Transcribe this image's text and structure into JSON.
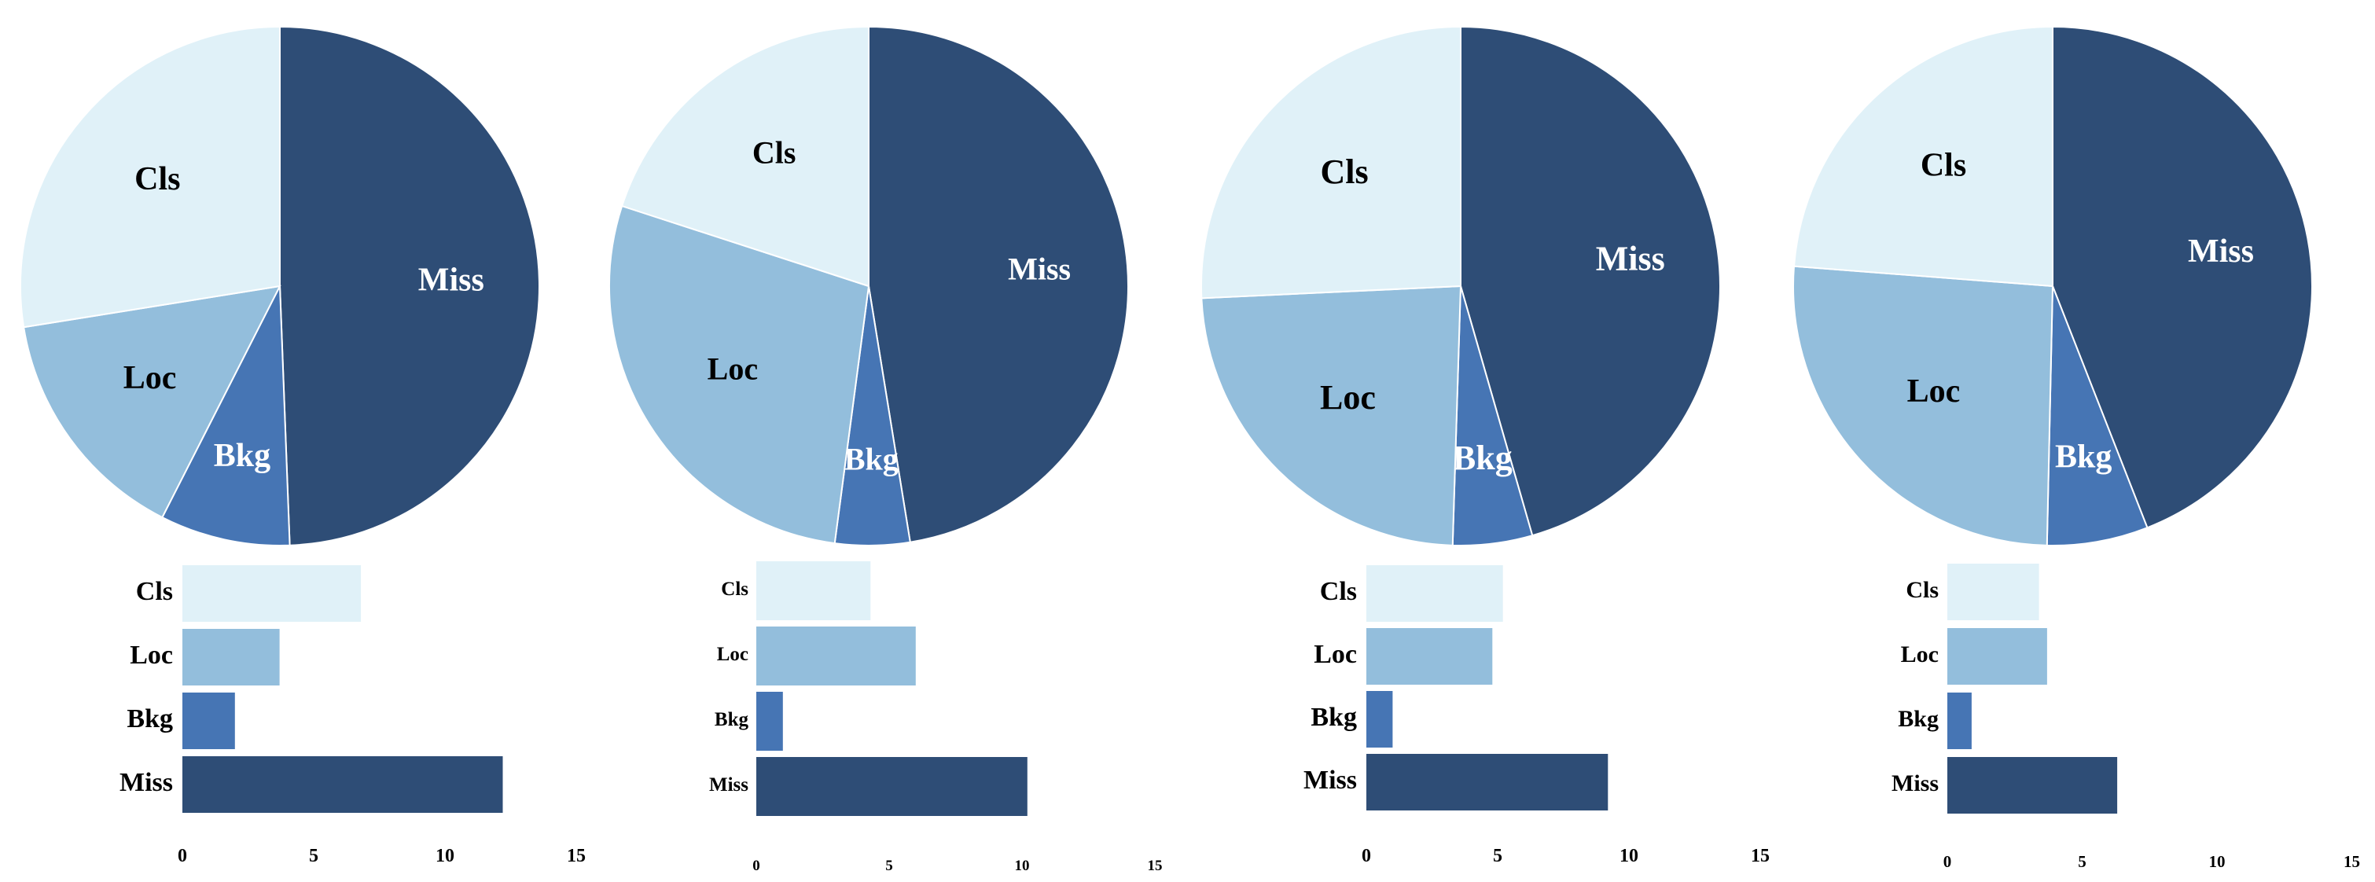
{
  "chart_data": [
    {
      "type": "pie",
      "panel": 1,
      "categories": [
        "Miss",
        "Bkg",
        "Loc",
        "Cls"
      ],
      "values": [
        12.2,
        2.0,
        3.7,
        6.8
      ],
      "colors": [
        "#2e4d76",
        "#4675b4",
        "#93bedc",
        "#e0f1f8"
      ],
      "label_colors": [
        "#ffffff",
        "#ffffff",
        "#000000",
        "#000000"
      ],
      "bar_chart": {
        "type": "bar",
        "orientation": "horizontal",
        "categories": [
          "Cls",
          "Loc",
          "Bkg",
          "Miss"
        ],
        "values": [
          6.8,
          3.7,
          2.0,
          12.2
        ],
        "xticks": [
          "0",
          "5",
          "10",
          "15"
        ],
        "xlim": [
          0,
          15
        ]
      }
    },
    {
      "type": "pie",
      "panel": 2,
      "categories": [
        "Miss",
        "Bkg",
        "Loc",
        "Cls"
      ],
      "values": [
        10.2,
        1.0,
        6.0,
        4.3
      ],
      "colors": [
        "#2e4d76",
        "#4675b4",
        "#93bedc",
        "#e0f1f8"
      ],
      "label_colors": [
        "#ffffff",
        "#ffffff",
        "#000000",
        "#000000"
      ],
      "bar_chart": {
        "type": "bar",
        "orientation": "horizontal",
        "categories": [
          "Cls",
          "Loc",
          "Bkg",
          "Miss"
        ],
        "values": [
          4.3,
          6.0,
          1.0,
          10.2
        ],
        "xticks": [
          "0",
          "5",
          "10",
          "15"
        ],
        "xlim": [
          0,
          15
        ]
      }
    },
    {
      "type": "pie",
      "panel": 3,
      "categories": [
        "Miss",
        "Bkg",
        "Loc",
        "Cls"
      ],
      "values": [
        9.2,
        1.0,
        4.8,
        5.2
      ],
      "colors": [
        "#2e4d76",
        "#4675b4",
        "#93bedc",
        "#e0f1f8"
      ],
      "label_colors": [
        "#ffffff",
        "#ffffff",
        "#000000",
        "#000000"
      ],
      "bar_chart": {
        "type": "bar",
        "orientation": "horizontal",
        "categories": [
          "Cls",
          "Loc",
          "Bkg",
          "Miss"
        ],
        "values": [
          5.2,
          4.8,
          1.0,
          9.2
        ],
        "xticks": [
          "0",
          "5",
          "10",
          "15"
        ],
        "xlim": [
          0,
          15
        ]
      }
    },
    {
      "type": "pie",
      "panel": 4,
      "categories": [
        "Miss",
        "Bkg",
        "Loc",
        "Cls"
      ],
      "values": [
        6.3,
        0.9,
        3.7,
        3.4
      ],
      "colors": [
        "#2e4d76",
        "#4675b4",
        "#93bedc",
        "#e0f1f8"
      ],
      "label_colors": [
        "#ffffff",
        "#ffffff",
        "#000000",
        "#000000"
      ],
      "bar_chart": {
        "type": "bar",
        "orientation": "horizontal",
        "categories": [
          "Cls",
          "Loc",
          "Bkg",
          "Miss"
        ],
        "values": [
          3.4,
          3.7,
          0.9,
          6.3
        ],
        "xticks": [
          "0",
          "5",
          "10",
          "15"
        ],
        "xlim": [
          0,
          15
        ]
      }
    }
  ]
}
